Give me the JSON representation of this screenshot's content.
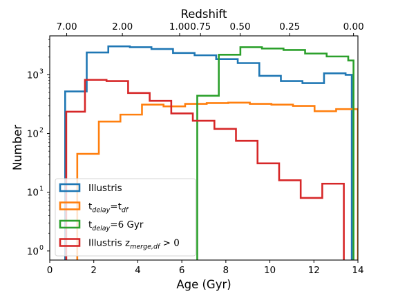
{
  "chart_data": {
    "type": "histogram",
    "xlabel": "Age (Gyr)",
    "ylabel": "Number",
    "top_axis_label": "Redshift",
    "xlim": [
      0,
      14
    ],
    "ylim": [
      0.7,
      4600
    ],
    "yscale": "log",
    "x_ticks": [
      0,
      2,
      4,
      6,
      8,
      10,
      12,
      14
    ],
    "x_tick_labels": [
      "0",
      "2",
      "4",
      "6",
      "8",
      "10",
      "12",
      "14"
    ],
    "y_ticks": [
      1,
      10,
      100,
      1000
    ],
    "y_tick_labels_base": [
      "10",
      "10",
      "10",
      "10"
    ],
    "y_tick_labels_exp": [
      "0",
      "1",
      "2",
      "3"
    ],
    "top_ticks": [
      {
        "label": "7.00",
        "age": 0.77
      },
      {
        "label": "2.00",
        "age": 3.3
      },
      {
        "label": "1.00",
        "age": 5.9
      },
      {
        "label": "0.75",
        "age": 6.85
      },
      {
        "label": "0.50",
        "age": 8.65
      },
      {
        "label": "0.25",
        "age": 10.9
      },
      {
        "label": "0.00",
        "age": 13.8
      }
    ],
    "legend_position": "lower-left",
    "series": [
      {
        "name": "Illustris",
        "name_main": "Illustris",
        "name_sub": "",
        "name_tail": "",
        "color": "#1f77b4",
        "edges": [
          0.7,
          1.68,
          2.66,
          3.64,
          4.62,
          5.6,
          6.58,
          7.56,
          8.54,
          9.52,
          10.5,
          11.48,
          12.46,
          13.44,
          13.72
        ],
        "values": [
          520,
          2400,
          3050,
          2950,
          2750,
          2350,
          2150,
          1850,
          1580,
          960,
          780,
          720,
          1060,
          1000
        ]
      },
      {
        "name": "tdelay=tdf",
        "name_main": "t",
        "name_sub": "delay",
        "name_tail": "=t",
        "name_sub2": "df",
        "name_end": "",
        "color": "#ff7f0e",
        "edges": [
          0.85,
          1.25,
          2.23,
          3.21,
          4.19,
          5.17,
          6.15,
          7.13,
          8.11,
          9.09,
          10.07,
          11.05,
          12.03,
          13.01,
          14.0
        ],
        "values": [
          0.6,
          45,
          160,
          210,
          310,
          290,
          320,
          330,
          335,
          320,
          310,
          295,
          240,
          260
        ]
      },
      {
        "name": "tdelay=6 Gyr",
        "name_main": "t",
        "name_sub": "delay",
        "name_tail": "=6 Gyr",
        "name_sub2": "",
        "name_end": "",
        "color": "#2ca02c",
        "edges": [
          6.7,
          7.68,
          8.66,
          9.64,
          10.62,
          11.6,
          12.58,
          13.56,
          13.8
        ],
        "values": [
          440,
          2200,
          2950,
          2800,
          2650,
          2300,
          2050,
          1750
        ]
      },
      {
        "name": "Illustris zmerge,df > 0",
        "name_main": "Illustris z",
        "name_sub": "merge,df",
        "name_tail": " > 0",
        "name_sub2": "",
        "name_end": "",
        "color": "#d62728",
        "edges": [
          0.75,
          1.6,
          2.58,
          3.56,
          4.54,
          5.52,
          6.5,
          7.48,
          8.46,
          9.44,
          10.42,
          11.4,
          12.38,
          13.36,
          13.7
        ],
        "values": [
          235,
          820,
          780,
          490,
          360,
          220,
          165,
          120,
          75,
          31,
          16,
          8,
          14,
          0.6
        ]
      }
    ]
  }
}
